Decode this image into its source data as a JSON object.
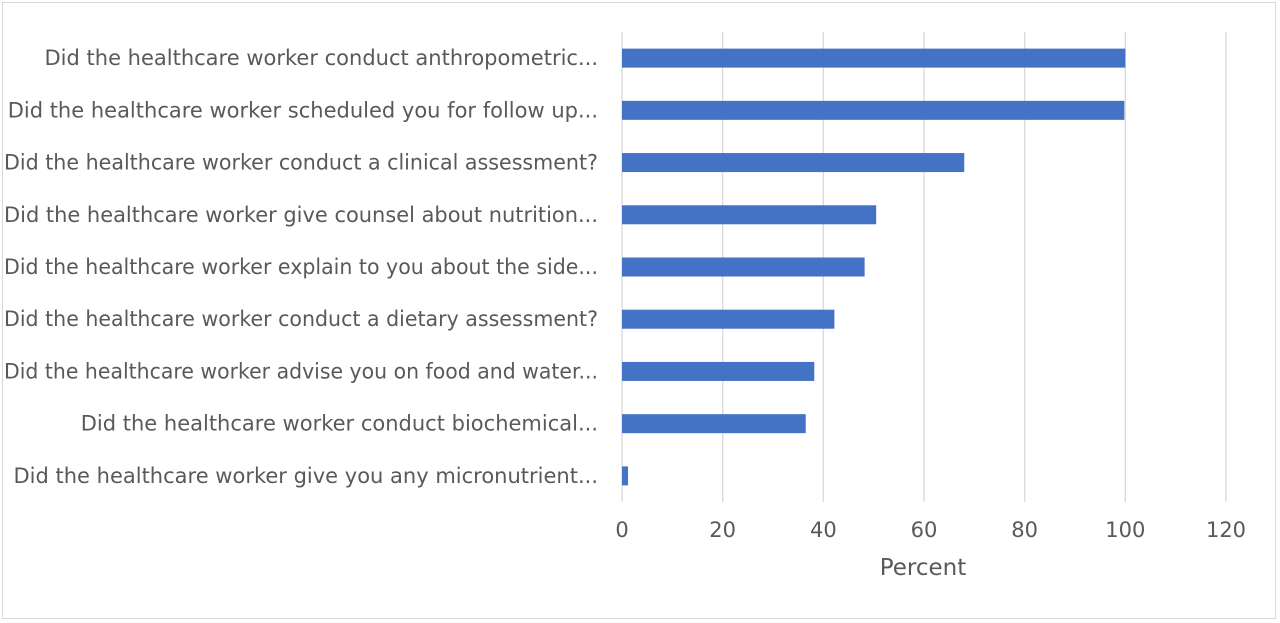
{
  "chart_data": {
    "type": "bar",
    "orientation": "horizontal",
    "categories": [
      "Did the healthcare worker conduct anthropometric...",
      "Did the healthcare worker scheduled you for follow up...",
      "Did the healthcare worker conduct a clinical assessment?",
      "Did the healthcare worker give counsel about nutrition...",
      "Did the healthcare worker explain to you about the side...",
      "Did the healthcare worker conduct a dietary assessment?",
      "Did the healthcare worker advise you on food and water...",
      "Did the healthcare worker conduct biochemical...",
      "Did the healthcare worker give you any micronutrient..."
    ],
    "values": [
      100,
      99.8,
      68,
      50.5,
      48.2,
      42.2,
      38.2,
      36.5,
      1.2
    ],
    "xlabel": "Percent",
    "ylabel": "",
    "xlim": [
      0,
      120
    ],
    "xticks": [
      "0",
      "20",
      "40",
      "60",
      "80",
      "100",
      "120"
    ],
    "grid": true,
    "bar_color": "#4472C4"
  }
}
